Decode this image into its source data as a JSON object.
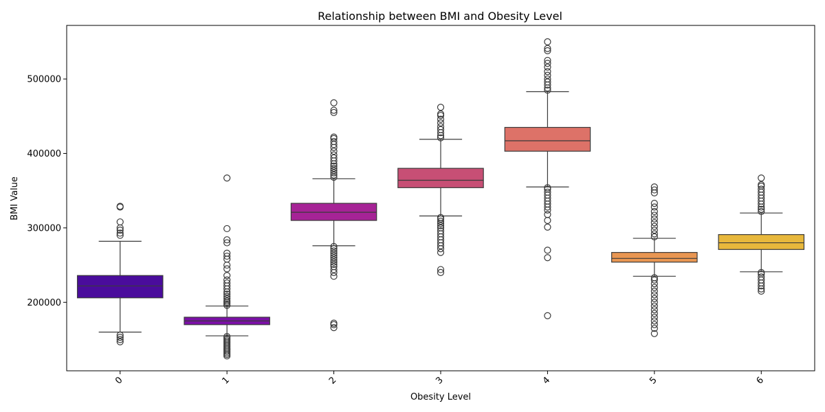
{
  "chart_data": {
    "type": "box",
    "title": "Relationship between BMI and Obesity Level",
    "xlabel": "Obesity Level",
    "ylabel": "BMI Value",
    "categories": [
      "0",
      "1",
      "2",
      "3",
      "4",
      "5",
      "6"
    ],
    "ylim": [
      108000,
      572000
    ],
    "yticks": [
      200000,
      300000,
      400000,
      500000
    ],
    "ytick_labels": [
      "200000",
      "300000",
      "400000",
      "500000"
    ],
    "grid": false,
    "legend": "none",
    "boxes": [
      {
        "category": "0",
        "color": "#4a0c9c",
        "q1": 206000,
        "median": 222000,
        "q3": 236000,
        "whisker_low": 160000,
        "whisker_high": 282000,
        "outliers": [
          147000,
          150000,
          153000,
          156000,
          290000,
          293000,
          297000,
          300000,
          308000,
          328000,
          329000
        ]
      },
      {
        "category": "1",
        "color": "#7b11a6",
        "q1": 170000,
        "median": 175000,
        "q3": 180000,
        "whisker_low": 155000,
        "whisker_high": 195000,
        "outliers": [
          128000,
          130000,
          132000,
          134000,
          136000,
          138000,
          140000,
          142000,
          144000,
          146000,
          148000,
          150000,
          152000,
          154000,
          196000,
          198000,
          200000,
          202000,
          205000,
          208000,
          211000,
          214000,
          218000,
          222000,
          226000,
          230000,
          236000,
          245000,
          250000,
          258000,
          262000,
          266000,
          280000,
          284000,
          299000,
          367000
        ]
      },
      {
        "category": "2",
        "color": "#a62396",
        "q1": 310000,
        "median": 321000,
        "q3": 333000,
        "whisker_low": 276000,
        "whisker_high": 366000,
        "outliers": [
          166000,
          170000,
          172000,
          235000,
          240000,
          244000,
          248000,
          251000,
          254000,
          257000,
          260000,
          263000,
          266000,
          269000,
          272000,
          275000,
          368000,
          371000,
          374000,
          377000,
          380000,
          383000,
          386000,
          390000,
          394000,
          398000,
          403000,
          408000,
          412000,
          416000,
          420000,
          422000,
          455000,
          458000,
          468000
        ]
      },
      {
        "category": "3",
        "color": "#c74f75",
        "q1": 354000,
        "median": 364000,
        "q3": 380000,
        "whisker_low": 316000,
        "whisker_high": 419000,
        "outliers": [
          240000,
          244000,
          267000,
          272000,
          276000,
          280000,
          284000,
          288000,
          292000,
          296000,
          300000,
          303000,
          306000,
          309000,
          312000,
          314000,
          421000,
          424000,
          428000,
          432000,
          436000,
          441000,
          446000,
          451000,
          453000,
          462000
        ]
      },
      {
        "category": "4",
        "color": "#dd7268",
        "q1": 403000,
        "median": 417000,
        "q3": 435000,
        "whisker_low": 355000,
        "whisker_high": 483000,
        "outliers": [
          182000,
          260000,
          270000,
          301000,
          310000,
          318000,
          324000,
          328000,
          332000,
          336000,
          340000,
          344000,
          348000,
          352000,
          354000,
          485000,
          488000,
          492000,
          496000,
          500000,
          505000,
          510000,
          516000,
          521000,
          525000,
          538000,
          541000,
          550000
        ]
      },
      {
        "category": "5",
        "color": "#e99652",
        "q1": 254000,
        "median": 259000,
        "q3": 267000,
        "whisker_low": 235000,
        "whisker_high": 286000,
        "outliers": [
          158000,
          165000,
          170000,
          175000,
          180000,
          185000,
          190000,
          195000,
          200000,
          205000,
          210000,
          215000,
          220000,
          225000,
          230000,
          233000,
          288000,
          292000,
          297000,
          302000,
          307000,
          312000,
          317000,
          322000,
          328000,
          333000,
          347000,
          351000,
          355000
        ]
      },
      {
        "category": "6",
        "color": "#e8b83c",
        "q1": 271000,
        "median": 280000,
        "q3": 291000,
        "whisker_low": 241000,
        "whisker_high": 320000,
        "outliers": [
          215000,
          218000,
          222000,
          226000,
          230000,
          234000,
          238000,
          240000,
          322000,
          325000,
          328000,
          332000,
          336000,
          340000,
          344000,
          348000,
          352000,
          356000,
          358000,
          367000
        ]
      }
    ]
  }
}
